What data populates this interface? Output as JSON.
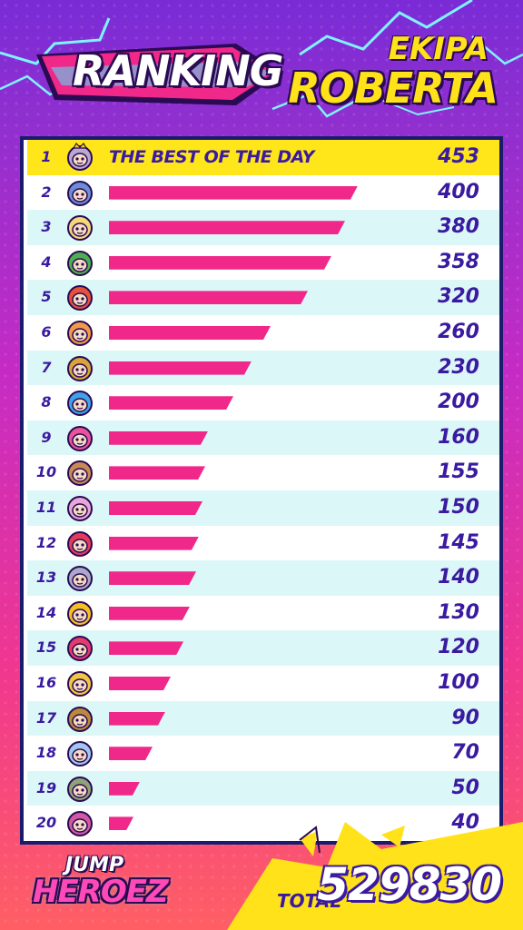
{
  "header": {
    "title": "RANKING",
    "team_line1": "EKIPA",
    "team_line2": "ROBERTA"
  },
  "ranking": {
    "best_label": "THE BEST OF THE DAY",
    "max_value": 453,
    "rows": [
      {
        "rank": "1",
        "score": 453,
        "avatar": "king-crown-avatar-icon",
        "color": "#b9a7d6"
      },
      {
        "rank": "2",
        "score": 400,
        "avatar": "goggles-hero-avatar-icon",
        "color": "#6a8fd8"
      },
      {
        "rank": "3",
        "score": 380,
        "avatar": "blonde-hero-avatar-icon",
        "color": "#f4d77a"
      },
      {
        "rank": "4",
        "score": 358,
        "avatar": "green-mask-avatar-icon",
        "color": "#4caf50"
      },
      {
        "rank": "5",
        "score": 320,
        "avatar": "robot-horns-avatar-icon",
        "color": "#e5513b"
      },
      {
        "rank": "6",
        "score": 260,
        "avatar": "orange-hair-avatar-icon",
        "color": "#f39a4a"
      },
      {
        "rank": "7",
        "score": 230,
        "avatar": "helmet-hero-avatar-icon",
        "color": "#d9a53b"
      },
      {
        "rank": "8",
        "score": 200,
        "avatar": "blue-spiky-avatar-icon",
        "color": "#3ea3e8"
      },
      {
        "rank": "9",
        "score": 160,
        "avatar": "pink-cat-avatar-icon",
        "color": "#e8539a"
      },
      {
        "rank": "10",
        "score": 155,
        "avatar": "mummy-avatar-icon",
        "color": "#c98a55"
      },
      {
        "rank": "11",
        "score": 150,
        "avatar": "flower-avatar-icon",
        "color": "#e7a7d9"
      },
      {
        "rank": "12",
        "score": 145,
        "avatar": "hooded-avatar-icon",
        "color": "#e23b5c"
      },
      {
        "rank": "13",
        "score": 140,
        "avatar": "grey-knight-avatar-icon",
        "color": "#a9a9c9"
      },
      {
        "rank": "14",
        "score": 130,
        "avatar": "bee-avatar-icon",
        "color": "#f5c023"
      },
      {
        "rank": "15",
        "score": 120,
        "avatar": "red-hair-avatar-icon",
        "color": "#e23b6e"
      },
      {
        "rank": "16",
        "score": 100,
        "avatar": "yellow-beast-avatar-icon",
        "color": "#f2c744"
      },
      {
        "rank": "17",
        "score": 90,
        "avatar": "visor-avatar-icon",
        "color": "#b98a3b"
      },
      {
        "rank": "18",
        "score": 70,
        "avatar": "ice-crown-avatar-icon",
        "color": "#9fc8f0"
      },
      {
        "rank": "19",
        "score": 50,
        "avatar": "goblin-avatar-icon",
        "color": "#8fa37a"
      },
      {
        "rank": "20",
        "score": 40,
        "avatar": "skull-hood-avatar-icon",
        "color": "#d25aa5"
      }
    ]
  },
  "footer": {
    "logo_line1": "JUMP",
    "logo_line2": "HEROEZ",
    "total_label": "TOTAL",
    "total_value": "529830"
  },
  "colors": {
    "bar": "#f0288a",
    "text": "#3a1aa0",
    "highlight": "#ffe61a",
    "alt_row": "#dcf7f7",
    "accent_yellow": "#ffe21a"
  }
}
